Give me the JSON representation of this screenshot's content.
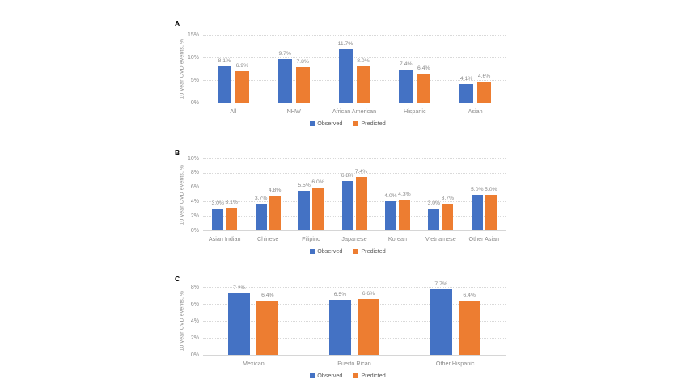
{
  "page": {
    "background": "#ffffff"
  },
  "colors": {
    "observed": "#4472C4",
    "predicted": "#ED7D31",
    "gridline": "#D9D9D9",
    "axis_text": "#8A8A8A",
    "legend_text": "#595959"
  },
  "legend": {
    "items": [
      {
        "label": "Observed",
        "color": "#4472C4"
      },
      {
        "label": "Predicted",
        "color": "#ED7D31"
      }
    ]
  },
  "chart_data": [
    {
      "type": "bar",
      "panel": "A",
      "title": "",
      "xlabel": "",
      "ylabel": "10 year CVD events, %",
      "ylim": [
        0,
        15
      ],
      "ytick_step": 5,
      "yticks": [
        "0%",
        "5%",
        "10%",
        "15%"
      ],
      "grid": true,
      "legend_position": "bottom",
      "categories": [
        "All",
        "NHW",
        "African American",
        "Hispanic",
        "Asian"
      ],
      "series": [
        {
          "name": "Observed",
          "values": [
            8.1,
            9.7,
            11.7,
            7.4,
            4.1
          ],
          "labels": [
            "8.1%",
            "9.7%",
            "11.7%",
            "7.4%",
            "4.1%"
          ]
        },
        {
          "name": "Predicted",
          "values": [
            6.9,
            7.8,
            8.0,
            6.4,
            4.6
          ],
          "labels": [
            "6.9%",
            "7.8%",
            "8.0%",
            "6.4%",
            "4.6%"
          ]
        }
      ]
    },
    {
      "type": "bar",
      "panel": "B",
      "title": "",
      "xlabel": "",
      "ylabel": "10 year CVD events, %",
      "ylim": [
        0,
        10
      ],
      "ytick_step": 2,
      "yticks": [
        "0%",
        "2%",
        "4%",
        "6%",
        "8%",
        "10%"
      ],
      "grid": true,
      "legend_position": "bottom",
      "categories": [
        "Asian Indian",
        "Chinese",
        "Filipino",
        "Japanese",
        "Korean",
        "Vietnamese",
        "Other Asian"
      ],
      "series": [
        {
          "name": "Observed",
          "values": [
            3.0,
            3.7,
            5.5,
            6.8,
            4.0,
            3.0,
            5.0
          ],
          "labels": [
            "3.0%",
            "3.7%",
            "5.5%",
            "6.8%",
            "4.0%",
            "3.0%",
            "5.0%"
          ]
        },
        {
          "name": "Predicted",
          "values": [
            3.1,
            4.8,
            6.0,
            7.4,
            4.3,
            3.7,
            5.0
          ],
          "labels": [
            "3.1%",
            "4.8%",
            "6.0%",
            "7.4%",
            "4.3%",
            "3.7%",
            "5.0%"
          ]
        }
      ]
    },
    {
      "type": "bar",
      "panel": "C",
      "title": "",
      "xlabel": "",
      "ylabel": "10 year CVD events, %",
      "ylim": [
        0,
        8
      ],
      "ytick_step": 2,
      "yticks": [
        "0%",
        "2%",
        "4%",
        "6%",
        "8%"
      ],
      "grid": true,
      "legend_position": "bottom",
      "categories": [
        "Mexican",
        "Puerto Rican",
        "Other Hispanic"
      ],
      "series": [
        {
          "name": "Observed",
          "values": [
            7.2,
            6.5,
            7.7
          ],
          "labels": [
            "7.2%",
            "6.5%",
            "7.7%"
          ]
        },
        {
          "name": "Predicted",
          "values": [
            6.4,
            6.6,
            6.4
          ],
          "labels": [
            "6.4%",
            "6.6%",
            "6.4%"
          ]
        }
      ]
    }
  ]
}
